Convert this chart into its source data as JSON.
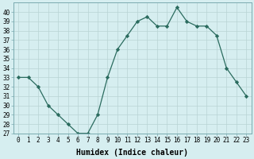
{
  "x": [
    0,
    1,
    2,
    3,
    4,
    5,
    6,
    7,
    8,
    9,
    10,
    11,
    12,
    13,
    14,
    15,
    16,
    17,
    18,
    19,
    20,
    21,
    22,
    23
  ],
  "y": [
    33,
    33,
    32,
    30,
    29,
    28,
    27,
    27,
    29,
    33,
    36,
    37.5,
    39,
    39.5,
    38.5,
    38.5,
    40.5,
    39,
    38.5,
    38.5,
    37.5,
    34,
    32.5,
    31
  ],
  "line_color": "#2a6b5e",
  "marker": "D",
  "marker_size": 2.2,
  "bg_color": "#d6eef0",
  "grid_color": "#b8d4d4",
  "xlabel": "Humidex (Indice chaleur)",
  "ylim": [
    27,
    41
  ],
  "yticks": [
    27,
    28,
    29,
    30,
    31,
    32,
    33,
    34,
    35,
    36,
    37,
    38,
    39,
    40
  ],
  "xticks": [
    0,
    1,
    2,
    3,
    4,
    5,
    6,
    7,
    8,
    9,
    10,
    11,
    12,
    13,
    14,
    15,
    16,
    17,
    18,
    19,
    20,
    21,
    22,
    23
  ],
  "tick_label_fontsize": 5.5,
  "xlabel_fontsize": 7.0,
  "line_width": 0.9,
  "spine_color": "#7aaab0"
}
